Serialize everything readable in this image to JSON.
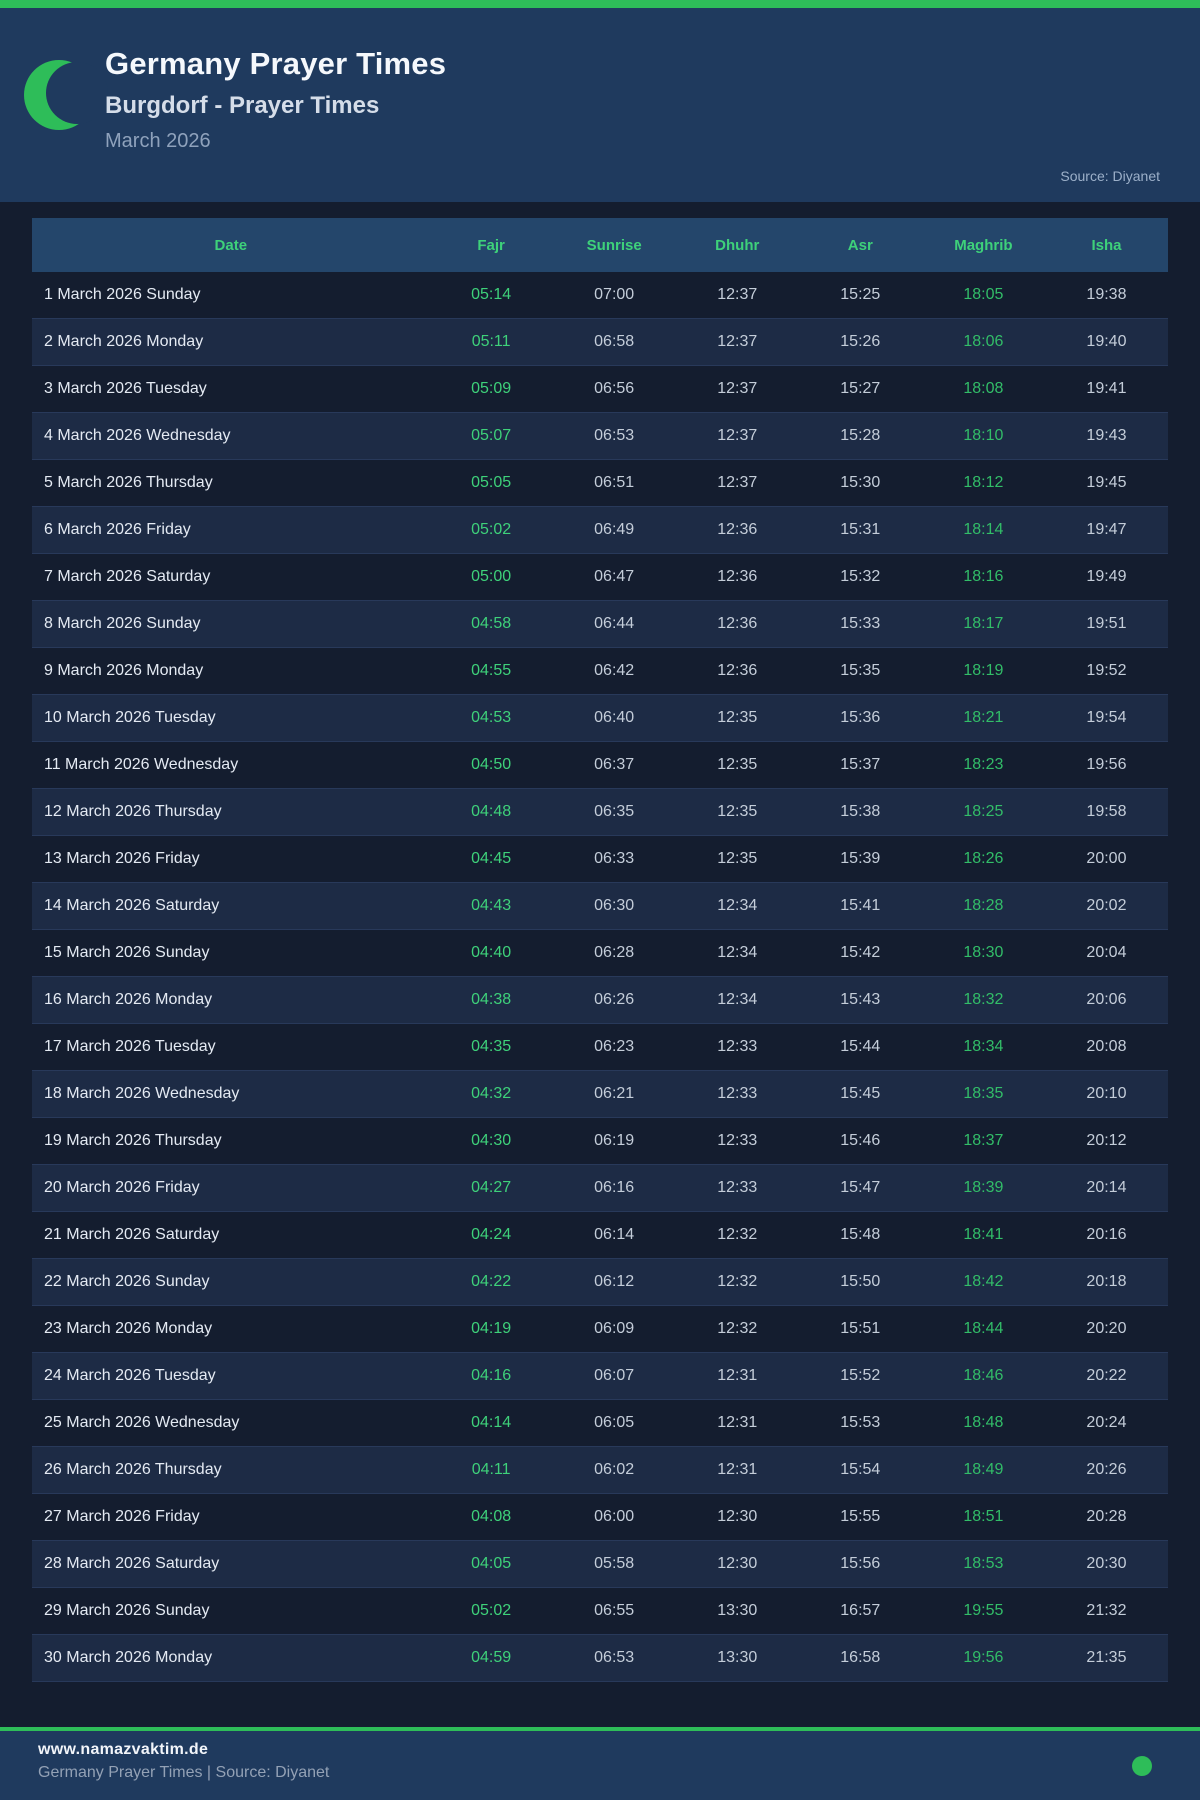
{
  "colors": {
    "accent_green": "#2ebd59",
    "fajr_green": "#3ed17a",
    "maghrib_green": "#32bd68",
    "hero_bg": "#1f3a5e",
    "page_bg": "#141d2f",
    "table_header_bg": "#24466b",
    "row_alt_bg": "#1d2b45"
  },
  "header": {
    "title": "Germany Prayer Times",
    "subtitle": "Burgdorf - Prayer Times",
    "month": "March 2026",
    "source": "Source: Diyanet",
    "icon": "crescent-moon-icon"
  },
  "table": {
    "columns": [
      "Date",
      "Fajr",
      "Sunrise",
      "Dhuhr",
      "Asr",
      "Maghrib",
      "Isha"
    ],
    "rows": [
      {
        "date": "1 March 2026 Sunday",
        "fajr": "05:14",
        "sunrise": "07:00",
        "dhuhr": "12:37",
        "asr": "15:25",
        "maghrib": "18:05",
        "isha": "19:38"
      },
      {
        "date": "2 March 2026 Monday",
        "fajr": "05:11",
        "sunrise": "06:58",
        "dhuhr": "12:37",
        "asr": "15:26",
        "maghrib": "18:06",
        "isha": "19:40"
      },
      {
        "date": "3 March 2026 Tuesday",
        "fajr": "05:09",
        "sunrise": "06:56",
        "dhuhr": "12:37",
        "asr": "15:27",
        "maghrib": "18:08",
        "isha": "19:41"
      },
      {
        "date": "4 March 2026 Wednesday",
        "fajr": "05:07",
        "sunrise": "06:53",
        "dhuhr": "12:37",
        "asr": "15:28",
        "maghrib": "18:10",
        "isha": "19:43"
      },
      {
        "date": "5 March 2026 Thursday",
        "fajr": "05:05",
        "sunrise": "06:51",
        "dhuhr": "12:37",
        "asr": "15:30",
        "maghrib": "18:12",
        "isha": "19:45"
      },
      {
        "date": "6 March 2026 Friday",
        "fajr": "05:02",
        "sunrise": "06:49",
        "dhuhr": "12:36",
        "asr": "15:31",
        "maghrib": "18:14",
        "isha": "19:47"
      },
      {
        "date": "7 March 2026 Saturday",
        "fajr": "05:00",
        "sunrise": "06:47",
        "dhuhr": "12:36",
        "asr": "15:32",
        "maghrib": "18:16",
        "isha": "19:49"
      },
      {
        "date": "8 March 2026 Sunday",
        "fajr": "04:58",
        "sunrise": "06:44",
        "dhuhr": "12:36",
        "asr": "15:33",
        "maghrib": "18:17",
        "isha": "19:51"
      },
      {
        "date": "9 March 2026 Monday",
        "fajr": "04:55",
        "sunrise": "06:42",
        "dhuhr": "12:36",
        "asr": "15:35",
        "maghrib": "18:19",
        "isha": "19:52"
      },
      {
        "date": "10 March 2026 Tuesday",
        "fajr": "04:53",
        "sunrise": "06:40",
        "dhuhr": "12:35",
        "asr": "15:36",
        "maghrib": "18:21",
        "isha": "19:54"
      },
      {
        "date": "11 March 2026 Wednesday",
        "fajr": "04:50",
        "sunrise": "06:37",
        "dhuhr": "12:35",
        "asr": "15:37",
        "maghrib": "18:23",
        "isha": "19:56"
      },
      {
        "date": "12 March 2026 Thursday",
        "fajr": "04:48",
        "sunrise": "06:35",
        "dhuhr": "12:35",
        "asr": "15:38",
        "maghrib": "18:25",
        "isha": "19:58"
      },
      {
        "date": "13 March 2026 Friday",
        "fajr": "04:45",
        "sunrise": "06:33",
        "dhuhr": "12:35",
        "asr": "15:39",
        "maghrib": "18:26",
        "isha": "20:00"
      },
      {
        "date": "14 March 2026 Saturday",
        "fajr": "04:43",
        "sunrise": "06:30",
        "dhuhr": "12:34",
        "asr": "15:41",
        "maghrib": "18:28",
        "isha": "20:02"
      },
      {
        "date": "15 March 2026 Sunday",
        "fajr": "04:40",
        "sunrise": "06:28",
        "dhuhr": "12:34",
        "asr": "15:42",
        "maghrib": "18:30",
        "isha": "20:04"
      },
      {
        "date": "16 March 2026 Monday",
        "fajr": "04:38",
        "sunrise": "06:26",
        "dhuhr": "12:34",
        "asr": "15:43",
        "maghrib": "18:32",
        "isha": "20:06"
      },
      {
        "date": "17 March 2026 Tuesday",
        "fajr": "04:35",
        "sunrise": "06:23",
        "dhuhr": "12:33",
        "asr": "15:44",
        "maghrib": "18:34",
        "isha": "20:08"
      },
      {
        "date": "18 March 2026 Wednesday",
        "fajr": "04:32",
        "sunrise": "06:21",
        "dhuhr": "12:33",
        "asr": "15:45",
        "maghrib": "18:35",
        "isha": "20:10"
      },
      {
        "date": "19 March 2026 Thursday",
        "fajr": "04:30",
        "sunrise": "06:19",
        "dhuhr": "12:33",
        "asr": "15:46",
        "maghrib": "18:37",
        "isha": "20:12"
      },
      {
        "date": "20 March 2026 Friday",
        "fajr": "04:27",
        "sunrise": "06:16",
        "dhuhr": "12:33",
        "asr": "15:47",
        "maghrib": "18:39",
        "isha": "20:14"
      },
      {
        "date": "21 March 2026 Saturday",
        "fajr": "04:24",
        "sunrise": "06:14",
        "dhuhr": "12:32",
        "asr": "15:48",
        "maghrib": "18:41",
        "isha": "20:16"
      },
      {
        "date": "22 March 2026 Sunday",
        "fajr": "04:22",
        "sunrise": "06:12",
        "dhuhr": "12:32",
        "asr": "15:50",
        "maghrib": "18:42",
        "isha": "20:18"
      },
      {
        "date": "23 March 2026 Monday",
        "fajr": "04:19",
        "sunrise": "06:09",
        "dhuhr": "12:32",
        "asr": "15:51",
        "maghrib": "18:44",
        "isha": "20:20"
      },
      {
        "date": "24 March 2026 Tuesday",
        "fajr": "04:16",
        "sunrise": "06:07",
        "dhuhr": "12:31",
        "asr": "15:52",
        "maghrib": "18:46",
        "isha": "20:22"
      },
      {
        "date": "25 March 2026 Wednesday",
        "fajr": "04:14",
        "sunrise": "06:05",
        "dhuhr": "12:31",
        "asr": "15:53",
        "maghrib": "18:48",
        "isha": "20:24"
      },
      {
        "date": "26 March 2026 Thursday",
        "fajr": "04:11",
        "sunrise": "06:02",
        "dhuhr": "12:31",
        "asr": "15:54",
        "maghrib": "18:49",
        "isha": "20:26"
      },
      {
        "date": "27 March 2026 Friday",
        "fajr": "04:08",
        "sunrise": "06:00",
        "dhuhr": "12:30",
        "asr": "15:55",
        "maghrib": "18:51",
        "isha": "20:28"
      },
      {
        "date": "28 March 2026 Saturday",
        "fajr": "04:05",
        "sunrise": "05:58",
        "dhuhr": "12:30",
        "asr": "15:56",
        "maghrib": "18:53",
        "isha": "20:30"
      },
      {
        "date": "29 March 2026 Sunday",
        "fajr": "05:02",
        "sunrise": "06:55",
        "dhuhr": "13:30",
        "asr": "16:57",
        "maghrib": "19:55",
        "isha": "21:32"
      },
      {
        "date": "30 March 2026 Monday",
        "fajr": "04:59",
        "sunrise": "06:53",
        "dhuhr": "13:30",
        "asr": "16:58",
        "maghrib": "19:56",
        "isha": "21:35"
      }
    ]
  },
  "footer": {
    "site": "www.namazvaktim.de",
    "tagline": "Germany Prayer Times | Source: Diyanet",
    "status": "green-dot"
  }
}
